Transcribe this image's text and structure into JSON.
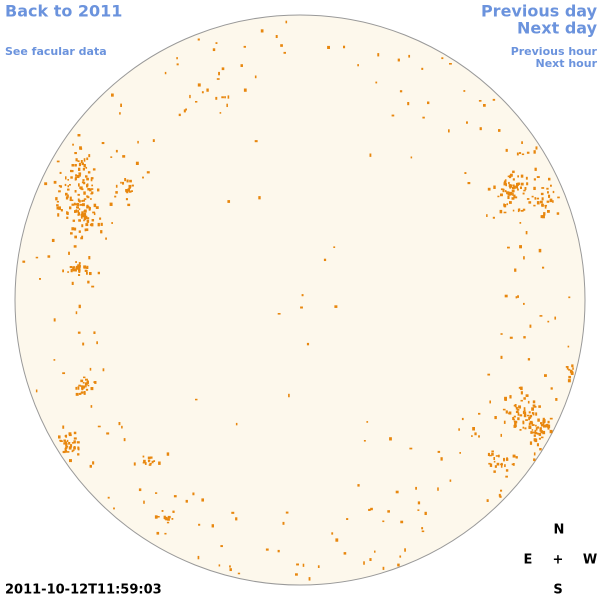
{
  "links": {
    "back": "Back to 2011",
    "facular_data": "See facular data",
    "previous_day": "Previous day",
    "next_day": "Next day",
    "previous_hour": "Previous hour",
    "next_hour": "Next hour"
  },
  "timestamp": "2011-10-12T11:59:03",
  "compass": {
    "north": "N",
    "east": "E",
    "center": "+",
    "west": "W",
    "south": "S"
  }
}
